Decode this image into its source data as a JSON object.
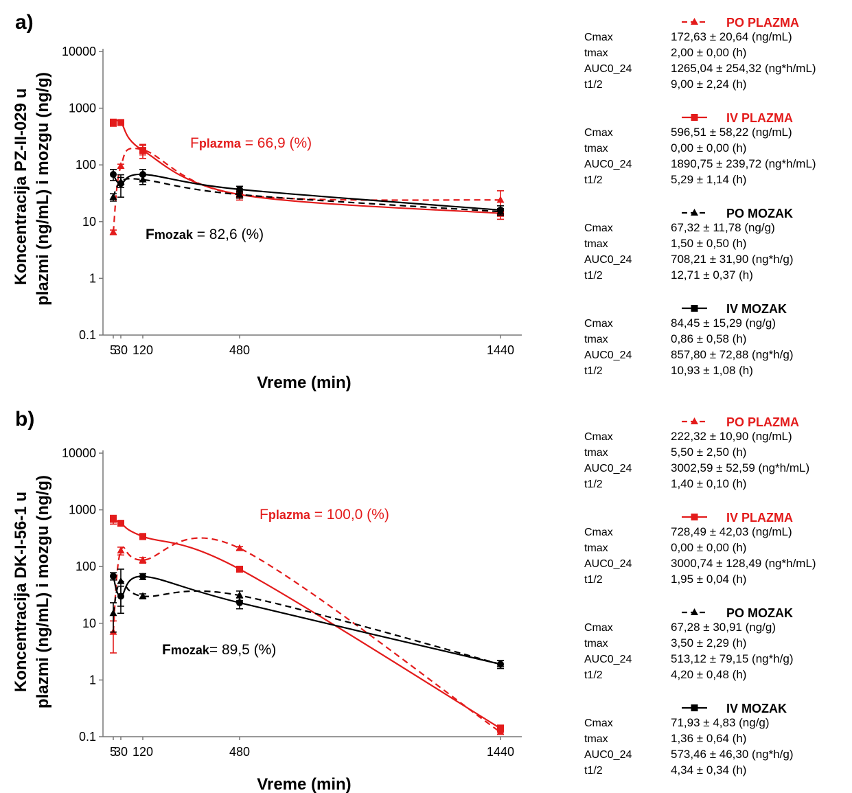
{
  "chart_data": [
    {
      "panel": "a)",
      "type": "line",
      "ylabel_line1": "Koncentracija PZ-II-029 u",
      "ylabel_line2": "plazmi (ng/mL) i mozgu (ng/g)",
      "xlabel": "Vreme (min)",
      "yscale": "log",
      "ylim": [
        0.1,
        10000
      ],
      "yticks": [
        "10000",
        "1000",
        "100",
        "10",
        "1",
        "0.1"
      ],
      "xticks": [
        "5",
        "30",
        "120",
        "480",
        "1440"
      ],
      "annotations": {
        "fplazma_sym": "F",
        "fplazma_sub": "plazma",
        "fplazma_val": " = 66,9 (%)",
        "fmozak_sym": "F",
        "fmozak_sub": "mozak",
        "fmozak_val": " = 82,6 (%)"
      },
      "series": [
        {
          "name": "PO PLAZMA",
          "color": "#e31b1b",
          "dash": true,
          "marker": "triangle",
          "x": [
            5,
            30,
            120,
            480,
            1440
          ],
          "y": [
            6.5,
            95,
            185,
            30,
            24
          ],
          "err": [
            0.6,
            8,
            35,
            4,
            11
          ]
        },
        {
          "name": "IV PLAZMA",
          "color": "#e31b1b",
          "dash": false,
          "marker": "square",
          "x": [
            5,
            30,
            120,
            480,
            1440
          ],
          "y": [
            560,
            560,
            180,
            30,
            14
          ],
          "err": [
            80,
            60,
            50,
            6,
            3
          ]
        },
        {
          "name": "PO MOZAK",
          "color": "#000000",
          "dash": true,
          "marker": "triangle",
          "x": [
            5,
            30,
            120,
            480,
            1440
          ],
          "y": [
            27,
            50,
            55,
            30,
            15
          ],
          "err": [
            4,
            10,
            10,
            4,
            2
          ]
        },
        {
          "name": "IV MOZAK",
          "color": "#000000",
          "dash": false,
          "marker": "circle",
          "x": [
            5,
            30,
            120,
            480,
            1440
          ],
          "y": [
            68,
            47,
            68,
            37,
            16
          ],
          "err": [
            15,
            20,
            15,
            5,
            3
          ]
        }
      ],
      "stats": [
        {
          "name": "PO PLAZMA",
          "color": "#e31b1b",
          "rows": [
            [
              "Cmax",
              "172,63 ± 20,64 (ng/mL)"
            ],
            [
              "tmax",
              "2,00 ± 0,00 (h)"
            ],
            [
              "AUC0_24",
              "1265,04 ± 254,32 (ng*h/mL)"
            ],
            [
              "t1/2",
              "9,00 ± 2,24 (h)"
            ]
          ]
        },
        {
          "name": "IV PLAZMA",
          "color": "#e31b1b",
          "rows": [
            [
              "Cmax",
              "596,51 ± 58,22 (ng/mL)"
            ],
            [
              "tmax",
              "0,00 ± 0,00 (h)"
            ],
            [
              "AUC0_24",
              "1890,75 ± 239,72 (ng*h/mL)"
            ],
            [
              "t1/2",
              "5,29 ± 1,14 (h)"
            ]
          ]
        },
        {
          "name": "PO MOZAK",
          "color": "#000000",
          "rows": [
            [
              "Cmax",
              "67,32 ± 11,78 (ng/g)"
            ],
            [
              "tmax",
              "1,50 ± 0,50 (h)"
            ],
            [
              "AUC0_24",
              "708,21 ± 31,90 (ng*h/g)"
            ],
            [
              "t1/2",
              "12,71 ± 0,37 (h)"
            ]
          ]
        },
        {
          "name": "IV MOZAK",
          "color": "#000000",
          "rows": [
            [
              "Cmax",
              "84,45 ± 15,29 (ng/g)"
            ],
            [
              "tmax",
              "0,86 ± 0,58 (h)"
            ],
            [
              "AUC0_24",
              "857,80 ± 72,88 (ng*h/g)"
            ],
            [
              "t1/2",
              "10,93 ± 1,08 (h)"
            ]
          ]
        }
      ]
    },
    {
      "panel": "b)",
      "type": "line",
      "ylabel_line1": "Koncentracija DK-I-56-1 u",
      "ylabel_line2": "plazmi (ng/mL) i mozgu (ng/g)",
      "xlabel": "Vreme (min)",
      "yscale": "log",
      "ylim": [
        0.1,
        10000
      ],
      "yticks": [
        "10000",
        "1000",
        "100",
        "10",
        "1",
        "0.1"
      ],
      "xticks": [
        "5",
        "30",
        "120",
        "480",
        "1440"
      ],
      "annotations": {
        "fplazma_sym": "F",
        "fplazma_sub": "plazma",
        "fplazma_val": " = 100,0 (%)",
        "fmozak_sym": "F",
        "fmozak_sub": "mozak",
        "fmozak_val": "= 89,5 (%)"
      },
      "series": [
        {
          "name": "PO PLAZMA",
          "color": "#e31b1b",
          "dash": true,
          "marker": "triangle",
          "x": [
            5,
            30,
            120,
            480,
            1440
          ],
          "y": [
            7,
            190,
            130,
            210,
            0.12
          ],
          "err": [
            4,
            30,
            15,
            15,
            0.01
          ]
        },
        {
          "name": "IV PLAZMA",
          "color": "#e31b1b",
          "dash": false,
          "marker": "square",
          "x": [
            5,
            30,
            120,
            480,
            1440
          ],
          "y": [
            680,
            580,
            340,
            90,
            0.14
          ],
          "err": [
            120,
            60,
            40,
            10,
            0.02
          ]
        },
        {
          "name": "PO MOZAK",
          "color": "#000000",
          "dash": true,
          "marker": "triangle",
          "x": [
            5,
            30,
            120,
            480,
            1440
          ],
          "y": [
            15,
            55,
            30,
            31,
            1.9
          ],
          "err": [
            8,
            35,
            3,
            6,
            0.3
          ]
        },
        {
          "name": "IV MOZAK",
          "color": "#000000",
          "dash": false,
          "marker": "circle",
          "x": [
            5,
            30,
            120,
            480,
            1440
          ],
          "y": [
            68,
            30,
            67,
            23,
            1.9
          ],
          "err": [
            10,
            15,
            8,
            5,
            0.3
          ]
        }
      ],
      "stats": [
        {
          "name": "PO PLAZMA",
          "color": "#e31b1b",
          "rows": [
            [
              "Cmax",
              "222,32 ± 10,90 (ng/mL)"
            ],
            [
              "tmax",
              "5,50 ± 2,50 (h)"
            ],
            [
              "AUC0_24",
              "3002,59 ± 52,59 (ng*h/mL)"
            ],
            [
              "t1/2",
              "1,40 ± 0,10 (h)"
            ]
          ]
        },
        {
          "name": "IV PLAZMA",
          "color": "#e31b1b",
          "rows": [
            [
              "Cmax",
              "728,49 ± 42,03 (ng/mL)"
            ],
            [
              "tmax",
              "0,00 ± 0,00 (h)"
            ],
            [
              "AUC0_24",
              "3000,74 ± 128,49 (ng*h/mL)"
            ],
            [
              "t1/2",
              "1,95 ± 0,04 (h)"
            ]
          ]
        },
        {
          "name": "PO MOZAK",
          "color": "#000000",
          "rows": [
            [
              "Cmax",
              "67,28 ± 30,91 (ng/g)"
            ],
            [
              "tmax",
              "3,50 ± 2,29 (h)"
            ],
            [
              "AUC0_24",
              "513,12 ± 79,15 (ng*h/g)"
            ],
            [
              "t1/2",
              "4,20 ± 0,48 (h)"
            ]
          ]
        },
        {
          "name": "IV MOZAK",
          "color": "#000000",
          "rows": [
            [
              "Cmax",
              "71,93 ± 4,83 (ng/g)"
            ],
            [
              "tmax",
              "1,36 ± 0,64 (h)"
            ],
            [
              "AUC0_24",
              "573,46 ± 46,30 (ng*h/g)"
            ],
            [
              "t1/2",
              "4,34 ± 0,34 (h)"
            ]
          ]
        }
      ]
    }
  ]
}
